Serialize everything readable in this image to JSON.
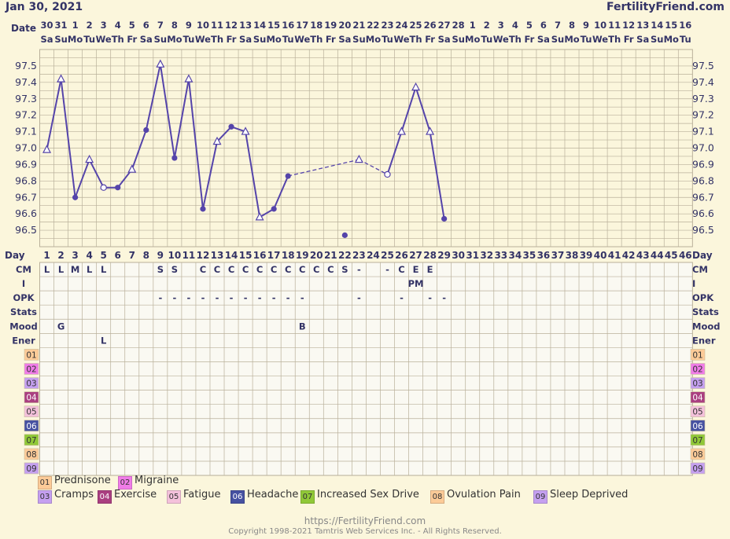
{
  "header": {
    "date": "Jan 30, 2021",
    "brand": "FertilityFriend.com"
  },
  "footer": {
    "url": "https://FertilityFriend.com",
    "copyright": "Copyright 1998-2021 Tamtris Web Services Inc. - All Rights Reserved."
  },
  "colors": {
    "background": "#FBF6DC",
    "grid": "#B9B09A",
    "line": "#5544AA",
    "stats_green": "#A8E08A",
    "stats_pink": "#F4B8CB",
    "cm_pink": "#F0BBCB",
    "cm_green": "#A8E08A"
  },
  "chart_data": {
    "type": "line",
    "title": "",
    "row_labels": {
      "date": "Date",
      "day": "Day",
      "cm": "CM",
      "intercourse": "I",
      "opk": "OPK",
      "stats": "Stats",
      "mood": "Mood",
      "energy": "Ener"
    },
    "dates": [
      "30",
      "31",
      "1",
      "2",
      "3",
      "4",
      "5",
      "6",
      "7",
      "8",
      "9",
      "10",
      "11",
      "12",
      "13",
      "14",
      "15",
      "16",
      "17",
      "18",
      "19",
      "20",
      "21",
      "22",
      "23",
      "24",
      "25",
      "26",
      "27",
      "28",
      "1",
      "2",
      "3",
      "4",
      "5",
      "6",
      "7",
      "8",
      "9",
      "10",
      "11",
      "12",
      "13",
      "14",
      "15",
      "16"
    ],
    "weekdays": [
      "Sa",
      "Su",
      "Mo",
      "Tu",
      "We",
      "Th",
      "Fr",
      "Sa",
      "Su",
      "Mo",
      "Tu",
      "We",
      "Th",
      "Fr",
      "Sa",
      "Su",
      "Mo",
      "Tu",
      "We",
      "Th",
      "Fr",
      "Sa",
      "Su",
      "Mo",
      "Tu",
      "We",
      "Th",
      "Fr",
      "Sa",
      "Su",
      "Mo",
      "Tu",
      "We",
      "Th",
      "Fr",
      "Sa",
      "Su",
      "Mo",
      "Tu",
      "We",
      "Th",
      "Fr",
      "Sa",
      "Su",
      "Mo",
      "Tu"
    ],
    "days": [
      1,
      2,
      3,
      4,
      5,
      6,
      7,
      8,
      9,
      10,
      11,
      12,
      13,
      14,
      15,
      16,
      17,
      18,
      19,
      20,
      21,
      22,
      23,
      24,
      25,
      26,
      27,
      28,
      29,
      30,
      31,
      32,
      33,
      34,
      35,
      36,
      37,
      38,
      39,
      40,
      41,
      42,
      43,
      44,
      45,
      46
    ],
    "y_ticks": [
      "96.5",
      "96.6",
      "96.7",
      "96.8",
      "96.9",
      "97.0",
      "97.1",
      "97.2",
      "97.3",
      "97.4",
      "97.5"
    ],
    "ylim": [
      96.4,
      97.6
    ],
    "temperatures": [
      {
        "day": 1,
        "temp": 96.99,
        "marker": "open-triangle"
      },
      {
        "day": 2,
        "temp": 97.42,
        "marker": "open-triangle"
      },
      {
        "day": 3,
        "temp": 96.7,
        "marker": "dot"
      },
      {
        "day": 4,
        "temp": 96.93,
        "marker": "open-triangle"
      },
      {
        "day": 5,
        "temp": 96.76,
        "marker": "open-circle"
      },
      {
        "day": 6,
        "temp": 96.76,
        "marker": "dot"
      },
      {
        "day": 7,
        "temp": 96.87,
        "marker": "open-triangle"
      },
      {
        "day": 8,
        "temp": 97.11,
        "marker": "dot"
      },
      {
        "day": 9,
        "temp": 97.51,
        "marker": "open-triangle"
      },
      {
        "day": 10,
        "temp": 96.94,
        "marker": "dot"
      },
      {
        "day": 11,
        "temp": 97.42,
        "marker": "open-triangle"
      },
      {
        "day": 12,
        "temp": 96.63,
        "marker": "dot"
      },
      {
        "day": 13,
        "temp": 97.04,
        "marker": "open-triangle"
      },
      {
        "day": 14,
        "temp": 97.13,
        "marker": "dot"
      },
      {
        "day": 15,
        "temp": 97.1,
        "marker": "open-triangle"
      },
      {
        "day": 16,
        "temp": 96.58,
        "marker": "open-triangle"
      },
      {
        "day": 17,
        "temp": 96.63,
        "marker": "dot"
      },
      {
        "day": 18,
        "temp": 96.83,
        "marker": "dot"
      },
      {
        "day": 23,
        "temp": 96.93,
        "marker": "open-triangle"
      },
      {
        "day": 25,
        "temp": 96.84,
        "marker": "open-circle"
      },
      {
        "day": 26,
        "temp": 97.1,
        "marker": "open-triangle"
      },
      {
        "day": 27,
        "temp": 97.37,
        "marker": "open-triangle"
      },
      {
        "day": 28,
        "temp": 97.1,
        "marker": "open-triangle"
      },
      {
        "day": 29,
        "temp": 96.57,
        "marker": "dot"
      }
    ],
    "dashed_segments": [
      [
        18,
        23
      ],
      [
        23,
        25
      ]
    ],
    "discarded": [
      {
        "day": 22,
        "temp": 96.47
      }
    ],
    "cm": [
      {
        "day": 1,
        "text": "L",
        "fill": "#F0BBCB"
      },
      {
        "day": 2,
        "text": "L",
        "fill": "#F0BBCB"
      },
      {
        "day": 3,
        "text": "M",
        "fill": "#F0BBCB"
      },
      {
        "day": 4,
        "text": "L",
        "fill": "#F0BBCB"
      },
      {
        "day": 5,
        "text": "L",
        "fill": "#F0BBCB"
      },
      {
        "day": 9,
        "text": "S"
      },
      {
        "day": 10,
        "text": "S"
      },
      {
        "day": 12,
        "text": "C"
      },
      {
        "day": 13,
        "text": "C"
      },
      {
        "day": 14,
        "text": "C"
      },
      {
        "day": 15,
        "text": "C"
      },
      {
        "day": 16,
        "text": "C"
      },
      {
        "day": 17,
        "text": "C"
      },
      {
        "day": 18,
        "text": "C"
      },
      {
        "day": 19,
        "text": "C"
      },
      {
        "day": 20,
        "text": "C"
      },
      {
        "day": 21,
        "text": "C"
      },
      {
        "day": 22,
        "text": "S"
      },
      {
        "day": 23,
        "text": "-"
      },
      {
        "day": 25,
        "text": "-"
      },
      {
        "day": 26,
        "text": "C"
      },
      {
        "day": 27,
        "text": "E",
        "fill": "#A8E08A"
      },
      {
        "day": 28,
        "text": "E",
        "fill": "#A8E08A"
      }
    ],
    "intercourse": [
      {
        "day": 27,
        "text": "PM"
      }
    ],
    "opk": [
      {
        "day": 9,
        "text": "-"
      },
      {
        "day": 10,
        "text": "-"
      },
      {
        "day": 11,
        "text": "-"
      },
      {
        "day": 12,
        "text": "-"
      },
      {
        "day": 13,
        "text": "-"
      },
      {
        "day": 14,
        "text": "-"
      },
      {
        "day": 15,
        "text": "-"
      },
      {
        "day": 16,
        "text": "-"
      },
      {
        "day": 17,
        "text": "-"
      },
      {
        "day": 18,
        "text": "-"
      },
      {
        "day": 19,
        "text": "-"
      },
      {
        "day": 23,
        "text": "-"
      },
      {
        "day": 26,
        "text": "-"
      },
      {
        "day": 28,
        "text": "-"
      },
      {
        "day": 29,
        "text": "-"
      }
    ],
    "stats": [
      {
        "from": 30,
        "to": 33,
        "fill": "#A8E08A"
      },
      {
        "from": 36,
        "to": 46,
        "fill": "#F4B8CB"
      }
    ],
    "mood": [
      {
        "day": 2,
        "text": "G"
      },
      {
        "day": 19,
        "text": "B"
      }
    ],
    "energy": [
      {
        "day": 5,
        "text": "L"
      }
    ],
    "custom_rows": [
      {
        "code": "01",
        "name": "Prednisone",
        "color": "#FCCB98",
        "cells": [
          18,
          19,
          20,
          21,
          22,
          23,
          24,
          25
        ]
      },
      {
        "code": "02",
        "name": "Migraine",
        "color": "#F07CE8",
        "cells": [
          12
        ]
      },
      {
        "code": "03",
        "name": "Cramps",
        "color": "#C5A0F0",
        "cells": [
          1,
          2,
          3
        ]
      },
      {
        "code": "04",
        "name": "Exercise",
        "color": "#AA3F80",
        "cells": [
          8
        ]
      },
      {
        "code": "05",
        "name": "Fatigue",
        "color": "#F4C1DB",
        "cells": [
          5
        ]
      },
      {
        "code": "06",
        "name": "Headache",
        "color": "#4651A1",
        "cells": [
          9,
          14
        ]
      },
      {
        "code": "07",
        "name": "Increased Sex Drive",
        "color": "#90C838",
        "cells": [
          12
        ]
      },
      {
        "code": "08",
        "name": "Ovulation Pain",
        "color": "#FCCB98",
        "cells": [
          28
        ]
      },
      {
        "code": "09",
        "name": "Sleep Deprived",
        "color": "#C5A0F0",
        "cells": [
          5,
          19,
          20,
          23,
          24,
          25,
          26
        ]
      }
    ]
  }
}
